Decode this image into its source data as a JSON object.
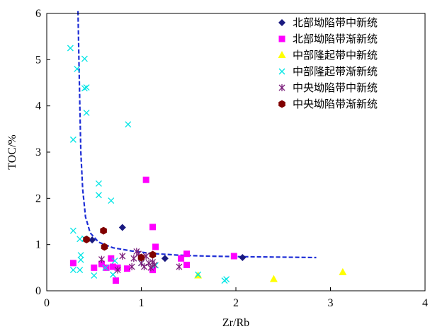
{
  "chart_data": {
    "type": "scatter",
    "xlabel": "Zr/Rb",
    "ylabel": "TOC/%",
    "xlim": [
      0,
      4
    ],
    "ylim": [
      0,
      6
    ],
    "xticks": [
      "0",
      "1",
      "2",
      "3",
      "4"
    ],
    "yticks": [
      "0",
      "1",
      "2",
      "3",
      "4",
      "5",
      "6"
    ],
    "legend_position": "top-right",
    "grid": false,
    "series": [
      {
        "name": "北部坳陷带中新统",
        "marker": "diamond",
        "color": "#1a1a80",
        "points": [
          [
            0.48,
            1.1
          ],
          [
            0.8,
            1.37
          ],
          [
            1.25,
            0.7
          ],
          [
            2.07,
            0.72
          ]
        ]
      },
      {
        "name": "北部坳陷带渐新统",
        "marker": "square",
        "color": "#ff00ff",
        "points": [
          [
            0.28,
            0.6
          ],
          [
            0.5,
            0.5
          ],
          [
            0.58,
            0.58
          ],
          [
            0.63,
            0.5
          ],
          [
            0.68,
            0.7
          ],
          [
            0.7,
            0.52
          ],
          [
            0.73,
            0.22
          ],
          [
            0.75,
            0.5
          ],
          [
            0.85,
            0.48
          ],
          [
            1.05,
            2.4
          ],
          [
            1.12,
            1.38
          ],
          [
            1.15,
            0.95
          ],
          [
            1.12,
            0.45
          ],
          [
            1.42,
            0.7
          ],
          [
            1.48,
            0.8
          ],
          [
            1.48,
            0.56
          ],
          [
            1.98,
            0.75
          ]
        ]
      },
      {
        "name": "中部隆起带中新统",
        "marker": "triangle",
        "color": "#ffff00",
        "points": [
          [
            1.6,
            0.33
          ],
          [
            2.4,
            0.25
          ],
          [
            3.13,
            0.4
          ]
        ]
      },
      {
        "name": "中部隆起带渐新统",
        "marker": "x",
        "color": "#00e5e5",
        "points": [
          [
            0.25,
            5.25
          ],
          [
            0.32,
            4.8
          ],
          [
            0.4,
            5.02
          ],
          [
            0.4,
            4.38
          ],
          [
            0.42,
            4.4
          ],
          [
            0.42,
            3.85
          ],
          [
            0.28,
            3.27
          ],
          [
            0.55,
            2.32
          ],
          [
            0.55,
            2.07
          ],
          [
            0.68,
            1.95
          ],
          [
            0.86,
            3.6
          ],
          [
            0.28,
            1.3
          ],
          [
            0.35,
            1.12
          ],
          [
            0.4,
            1.13
          ],
          [
            0.36,
            0.77
          ],
          [
            0.36,
            0.67
          ],
          [
            0.28,
            0.45
          ],
          [
            0.35,
            0.45
          ],
          [
            0.5,
            0.33
          ],
          [
            0.62,
            0.5
          ],
          [
            0.7,
            0.35
          ],
          [
            0.72,
            0.65
          ],
          [
            1.0,
            0.6
          ],
          [
            1.15,
            0.55
          ],
          [
            1.6,
            0.35
          ],
          [
            1.88,
            0.22
          ],
          [
            1.9,
            0.25
          ]
        ]
      },
      {
        "name": "中央坳陷带中新统",
        "marker": "star",
        "color": "#7b1f7b",
        "points": [
          [
            0.58,
            0.68
          ],
          [
            0.75,
            0.45
          ],
          [
            0.8,
            0.75
          ],
          [
            0.9,
            0.52
          ],
          [
            0.92,
            0.7
          ],
          [
            0.95,
            0.85
          ],
          [
            0.97,
            0.8
          ],
          [
            1.0,
            0.6
          ],
          [
            1.03,
            0.52
          ],
          [
            1.05,
            0.75
          ],
          [
            1.08,
            0.6
          ],
          [
            1.1,
            0.5
          ],
          [
            1.12,
            0.62
          ],
          [
            1.14,
            0.56
          ],
          [
            1.4,
            0.52
          ]
        ]
      },
      {
        "name": "中央坳陷带渐新统",
        "marker": "hexagon",
        "color": "#800000",
        "points": [
          [
            0.42,
            1.11
          ],
          [
            0.6,
            1.3
          ],
          [
            0.61,
            0.95
          ],
          [
            1.0,
            0.72
          ],
          [
            1.12,
            0.78
          ]
        ]
      }
    ],
    "trend_line": {
      "color": "#1e2ed6",
      "style": "dashed",
      "points": [
        [
          0.33,
          6.05
        ],
        [
          0.34,
          5.0
        ],
        [
          0.35,
          4.0
        ],
        [
          0.36,
          3.0
        ],
        [
          0.38,
          2.2
        ],
        [
          0.41,
          1.6
        ],
        [
          0.46,
          1.25
        ],
        [
          0.55,
          1.05
        ],
        [
          0.7,
          0.93
        ],
        [
          0.9,
          0.86
        ],
        [
          1.1,
          0.81
        ],
        [
          1.4,
          0.77
        ],
        [
          1.7,
          0.75
        ],
        [
          2.0,
          0.74
        ],
        [
          2.4,
          0.73
        ],
        [
          2.85,
          0.72
        ]
      ]
    }
  }
}
